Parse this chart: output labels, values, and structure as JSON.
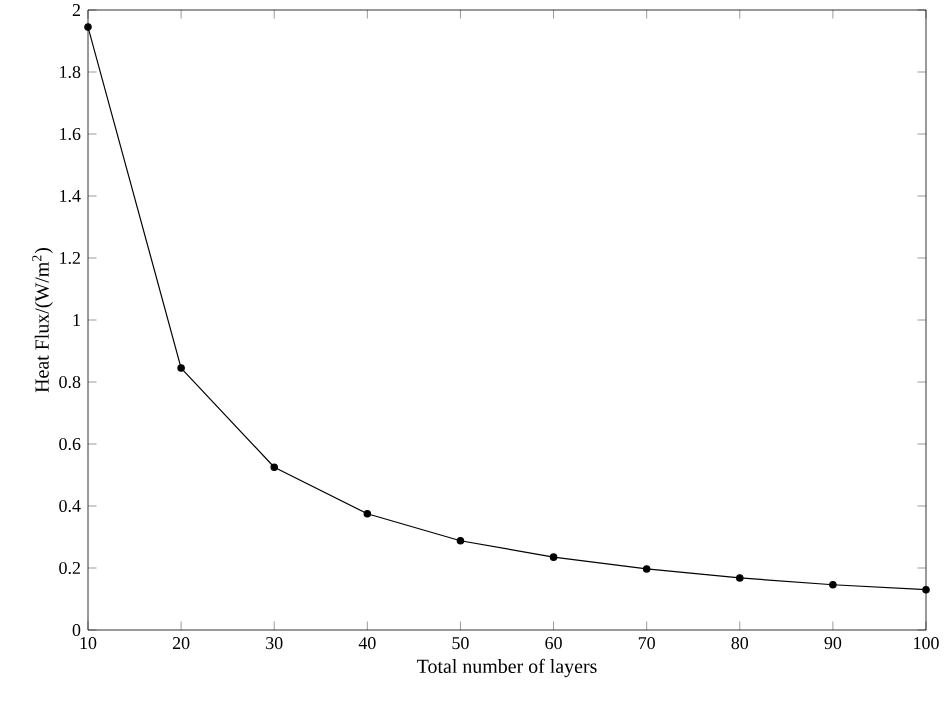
{
  "chart_data": {
    "type": "line",
    "xlabel": "Total number of layers",
    "ylabel": "Heat Flux/(W/m$^{2}$)",
    "x": [
      10,
      20,
      30,
      40,
      50,
      60,
      70,
      80,
      90,
      100
    ],
    "series": [
      {
        "color": "#000000",
        "values": [
          1.945,
          0.845,
          0.525,
          0.375,
          0.288,
          0.235,
          0.197,
          0.168,
          0.146,
          0.13
        ]
      }
    ],
    "xlim": [
      10,
      100
    ],
    "xticks": [
      10,
      20,
      30,
      40,
      50,
      60,
      70,
      80,
      90,
      100
    ],
    "ylim": [
      0,
      2
    ],
    "yticks": [
      0,
      0.2,
      0.4,
      0.6,
      0.8,
      1,
      1.2,
      1.4,
      1.6,
      1.8,
      2
    ],
    "marker": "circle",
    "line_style": "solid"
  }
}
